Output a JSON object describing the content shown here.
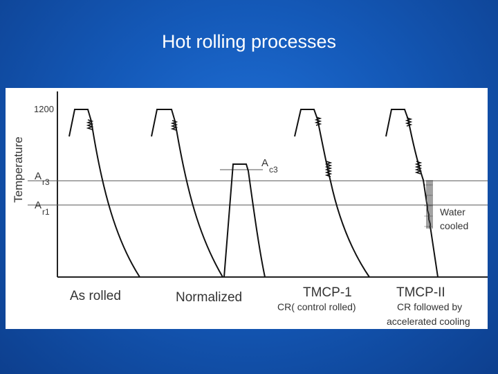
{
  "title": "Hot rolling processes",
  "diagram": {
    "y_axis_label": "Temperature",
    "y_tick_1200": "1200",
    "ar3_main": "A",
    "ar3_sub": "r3",
    "ar1_main": "A",
    "ar1_sub": "r1",
    "ac3_main": "A",
    "ac3_sub": "c3",
    "water_cooled_line1": "Water",
    "water_cooled_line2": "cooled",
    "process_as_rolled": "As rolled",
    "process_normalized": "Normalized",
    "process_tmcp1": "TMCP-1",
    "process_tmcp1_sub": "CR( control rolled)",
    "process_tmcp2": "TMCP-II",
    "process_tmcp2_sub_line1": "CR followed by",
    "process_tmcp2_sub_line2": "accelerated cooling"
  }
}
